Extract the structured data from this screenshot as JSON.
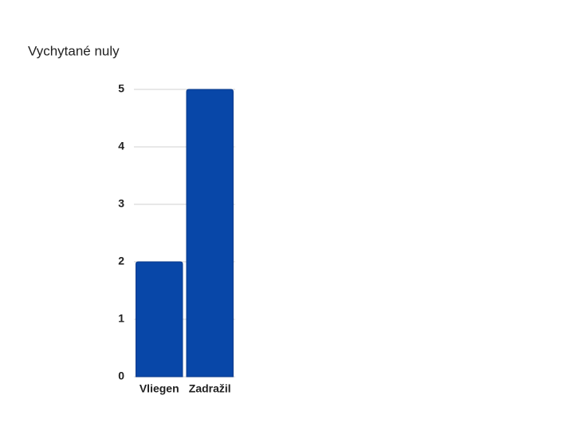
{
  "chart_data": {
    "type": "bar",
    "title": "Vychytané nuly",
    "categories": [
      "Vliegen",
      "Zadražil"
    ],
    "values": [
      2,
      5
    ],
    "color": "#0847a8",
    "ylim": [
      0,
      5
    ],
    "yticks": [
      0,
      1,
      2,
      3,
      4,
      5
    ],
    "grid": true
  }
}
